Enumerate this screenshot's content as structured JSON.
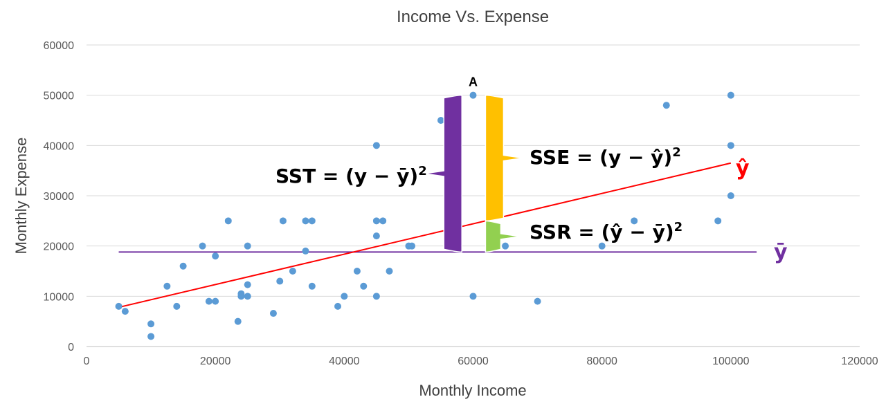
{
  "chart_data": {
    "type": "scatter",
    "title": "Income  Vs. Expense",
    "xlabel": "Monthly Income",
    "ylabel": "Monthly Expense",
    "xlim": [
      0,
      120000
    ],
    "ylim": [
      0,
      60000
    ],
    "x_ticks": [
      0,
      20000,
      40000,
      60000,
      80000,
      100000,
      120000
    ],
    "y_ticks": [
      0,
      10000,
      20000,
      30000,
      40000,
      50000,
      60000
    ],
    "x_tick_labels": [
      "0",
      "20000",
      "40000",
      "60000",
      "80000",
      "100000",
      "120000"
    ],
    "y_tick_labels": [
      "0",
      "10000",
      "20000",
      "30000",
      "40000",
      "50000",
      "60000"
    ],
    "grid": "horizontal",
    "points_color": "#5b9bd5",
    "points": [
      [
        5000,
        8000
      ],
      [
        6000,
        7000
      ],
      [
        10000,
        4500
      ],
      [
        10000,
        2000
      ],
      [
        12500,
        12000
      ],
      [
        14000,
        8000
      ],
      [
        15000,
        16000
      ],
      [
        18000,
        20000
      ],
      [
        19000,
        9000
      ],
      [
        20000,
        9000
      ],
      [
        20000,
        18000
      ],
      [
        22000,
        25000
      ],
      [
        23500,
        5000
      ],
      [
        24000,
        10000
      ],
      [
        24000,
        10500
      ],
      [
        25000,
        10000
      ],
      [
        25000,
        12300
      ],
      [
        25000,
        20000
      ],
      [
        29000,
        6600
      ],
      [
        30000,
        13000
      ],
      [
        30500,
        25000
      ],
      [
        32000,
        15000
      ],
      [
        34000,
        25000
      ],
      [
        34000,
        19000
      ],
      [
        35000,
        25000
      ],
      [
        35000,
        12000
      ],
      [
        39000,
        8000
      ],
      [
        40000,
        10000
      ],
      [
        42000,
        15000
      ],
      [
        43000,
        12000
      ],
      [
        45000,
        40000
      ],
      [
        45000,
        25000
      ],
      [
        45000,
        22000
      ],
      [
        45000,
        10000
      ],
      [
        46000,
        25000
      ],
      [
        47000,
        15000
      ],
      [
        50000,
        20000
      ],
      [
        50500,
        20000
      ],
      [
        55000,
        45000
      ],
      [
        60000,
        50000
      ],
      [
        60000,
        10000
      ],
      [
        65000,
        20000
      ],
      [
        70000,
        9000
      ],
      [
        80000,
        20000
      ],
      [
        85000,
        25000
      ],
      [
        90000,
        48000
      ],
      [
        98000,
        25000
      ],
      [
        100000,
        50000
      ],
      [
        100000,
        40000
      ],
      [
        100000,
        30000
      ]
    ],
    "regression_line": {
      "color": "#ff0000",
      "from": [
        5000,
        7800
      ],
      "to": [
        100000,
        36500
      ],
      "label": "ŷ"
    },
    "mean_line": {
      "color": "#7030a0",
      "from": [
        5000,
        18800
      ],
      "to": [
        104000,
        18800
      ],
      "label": "ȳ"
    },
    "highlight_point": {
      "label": "A",
      "x": 60000,
      "y": 50000
    },
    "annotations": {
      "sst": {
        "label": "SST = (y − ȳ)",
        "sup": "2",
        "color": "#7030a0",
        "from_y": 18800,
        "to_y": 50000,
        "x": 57500
      },
      "sse": {
        "label": "SSE = (y − ŷ)",
        "sup": "2",
        "color": "#ffc000",
        "from_y": 25000,
        "to_y": 50000,
        "x": 63000
      },
      "ssr": {
        "label": "SSR = (ŷ − ȳ)",
        "sup": "2",
        "color": "#92d050",
        "from_y": 18800,
        "to_y": 25000,
        "x": 63000
      }
    }
  }
}
